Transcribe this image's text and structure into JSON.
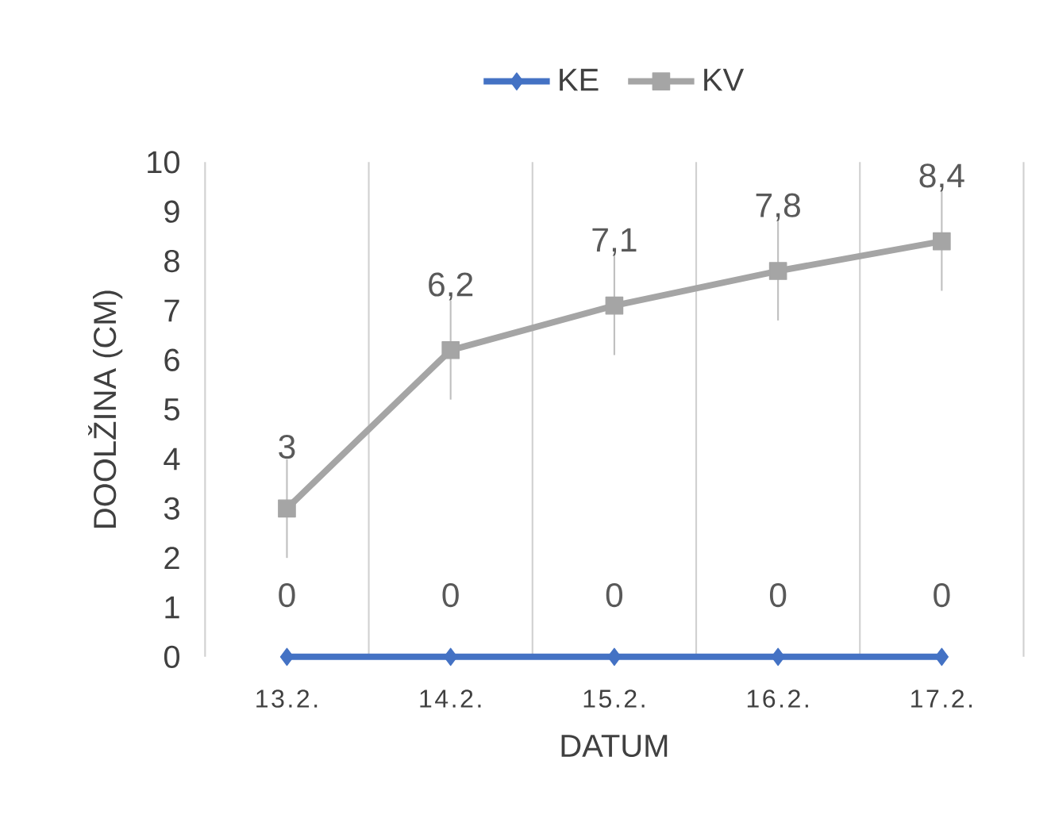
{
  "chart_data": {
    "type": "line",
    "xlabel": "DATUM",
    "ylabel": "DOOLŽINA (CM)",
    "categories": [
      "13.2.",
      "14.2.",
      "15.2.",
      "16.2.",
      "17.2."
    ],
    "series": [
      {
        "name": "KE",
        "color": "#4472c4",
        "marker": "diamond",
        "values": [
          0,
          0,
          0,
          0,
          0
        ],
        "value_labels": [
          "0",
          "0",
          "0",
          "0",
          "0"
        ]
      },
      {
        "name": "KV",
        "color": "#a5a5a5",
        "marker": "square",
        "values": [
          3,
          6.2,
          7.1,
          7.8,
          8.4
        ],
        "value_labels": [
          "3",
          "6,2",
          "7,1",
          "7,8",
          "8,4"
        ],
        "errors": [
          1,
          1,
          1,
          1,
          1
        ]
      }
    ],
    "ylim": [
      0,
      10
    ],
    "yticks": [
      0,
      1,
      2,
      3,
      4,
      5,
      6,
      7,
      8,
      9,
      10
    ],
    "grid": "x",
    "legend": "top"
  }
}
